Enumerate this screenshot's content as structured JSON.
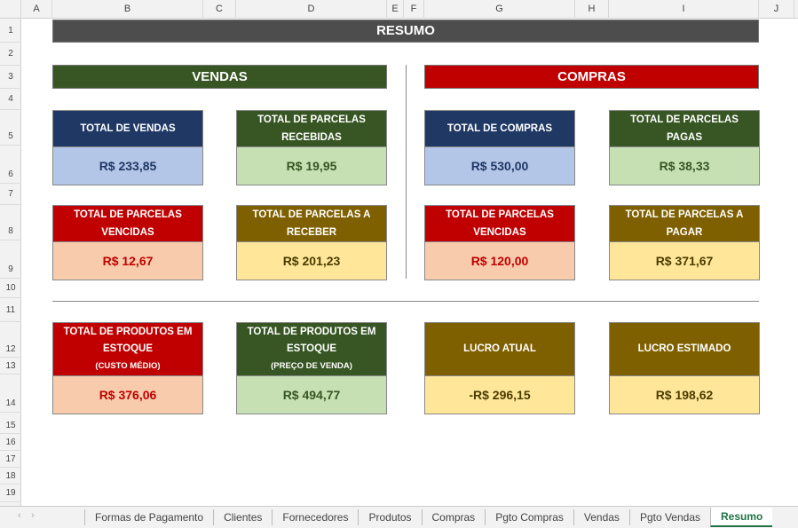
{
  "columns": [
    "A",
    "B",
    "C",
    "D",
    "E",
    "F",
    "G",
    "H",
    "I",
    "J"
  ],
  "rows": [
    "1",
    "2",
    "3",
    "4",
    "5",
    "6",
    "7",
    "8",
    "9",
    "10",
    "11",
    "12",
    "13",
    "14",
    "15",
    "16",
    "17",
    "18",
    "19"
  ],
  "title": "RESUMO",
  "vendas": {
    "title": "VENDAS",
    "total_vendas": {
      "label": "TOTAL DE VENDAS",
      "value": "R$ 233,85"
    },
    "parcelas_recebidas": {
      "label": "TOTAL DE PARCELAS RECEBIDAS",
      "value": "R$ 19,95"
    },
    "parcelas_vencidas": {
      "label": "TOTAL DE PARCELAS VENCIDAS",
      "value": "R$ 12,67"
    },
    "parcelas_a_receber": {
      "label": "TOTAL DE PARCELAS A RECEBER",
      "value": "R$ 201,23"
    }
  },
  "compras": {
    "title": "COMPRAS",
    "total_compras": {
      "label": "TOTAL DE COMPRAS",
      "value": "R$ 530,00"
    },
    "parcelas_pagas": {
      "label": "TOTAL DE PARCELAS PAGAS",
      "value": "R$ 38,33"
    },
    "parcelas_vencidas": {
      "label": "TOTAL DE PARCELAS VENCIDAS",
      "value": "R$ 120,00"
    },
    "parcelas_a_pagar": {
      "label": "TOTAL DE PARCELAS A PAGAR",
      "value": "R$ 371,67"
    }
  },
  "estoque_custo": {
    "label": "TOTAL DE PRODUTOS EM ESTOQUE",
    "sub": "(CUSTO MÉDIO)",
    "value": "R$ 376,06"
  },
  "estoque_venda": {
    "label": "TOTAL DE PRODUTOS EM ESTOQUE",
    "sub": "(PREÇO DE VENDA)",
    "value": "R$ 494,77"
  },
  "lucro_atual": {
    "label": "LUCRO ATUAL",
    "value": "-R$ 296,15"
  },
  "lucro_estimado": {
    "label": "LUCRO ESTIMADO",
    "value": "R$ 198,62"
  },
  "sheet_tabs": [
    "Formas de Pagamento",
    "Clientes",
    "Fornecedores",
    "Produtos",
    "Compras",
    "Pgto Compras",
    "Vendas",
    "Pgto Vendas",
    "Resumo"
  ],
  "active_tab": "Resumo"
}
